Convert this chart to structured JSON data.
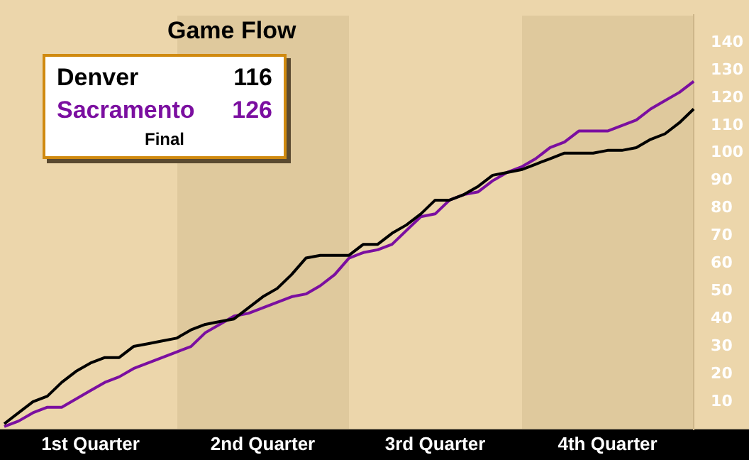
{
  "chart_data": {
    "type": "line",
    "title": "Game Flow",
    "categories": [
      null,
      null,
      null,
      null,
      null,
      null,
      "1st Quarter",
      null,
      null,
      null,
      null,
      null,
      null,
      null,
      null,
      null,
      null,
      null,
      "2nd Quarter",
      null,
      null,
      null,
      null,
      null,
      null,
      null,
      null,
      null,
      null,
      null,
      "3rd Quarter",
      null,
      null,
      null,
      null,
      null,
      null,
      null,
      null,
      null,
      null,
      null,
      "4th Quarter",
      null,
      null,
      null,
      null,
      null,
      null
    ],
    "series": [
      {
        "name": "Denver",
        "color": "#000000",
        "values": [
          2,
          6,
          10,
          12,
          17,
          21,
          24,
          26,
          26,
          30,
          31,
          32,
          33,
          36,
          38,
          39,
          40,
          44,
          48,
          51,
          56,
          62,
          63,
          63,
          63,
          67,
          67,
          71,
          74,
          78,
          83,
          83,
          85,
          88,
          92,
          93,
          94,
          96,
          98,
          100,
          100,
          100,
          101,
          101,
          102,
          105,
          107,
          111,
          116
        ]
      },
      {
        "name": "Sacramento",
        "color": "#7b0fa0",
        "values": [
          1,
          3,
          6,
          8,
          8,
          11,
          14,
          17,
          19,
          22,
          24,
          26,
          28,
          30,
          35,
          38,
          41,
          42,
          44,
          46,
          48,
          49,
          52,
          56,
          62,
          64,
          65,
          67,
          72,
          77,
          78,
          83,
          85,
          86,
          90,
          93,
          95,
          98,
          102,
          104,
          108,
          108,
          108,
          110,
          112,
          116,
          119,
          122,
          126
        ]
      }
    ],
    "annotations": [
      "116",
      "126",
      "Final"
    ],
    "ylim": [
      0,
      150
    ],
    "yticks": [
      10,
      20,
      30,
      40,
      50,
      60,
      70,
      80,
      90,
      100,
      110,
      120,
      130,
      140
    ],
    "legend": "top left",
    "grid": false,
    "marker": "none",
    "line_style": "solid"
  }
}
